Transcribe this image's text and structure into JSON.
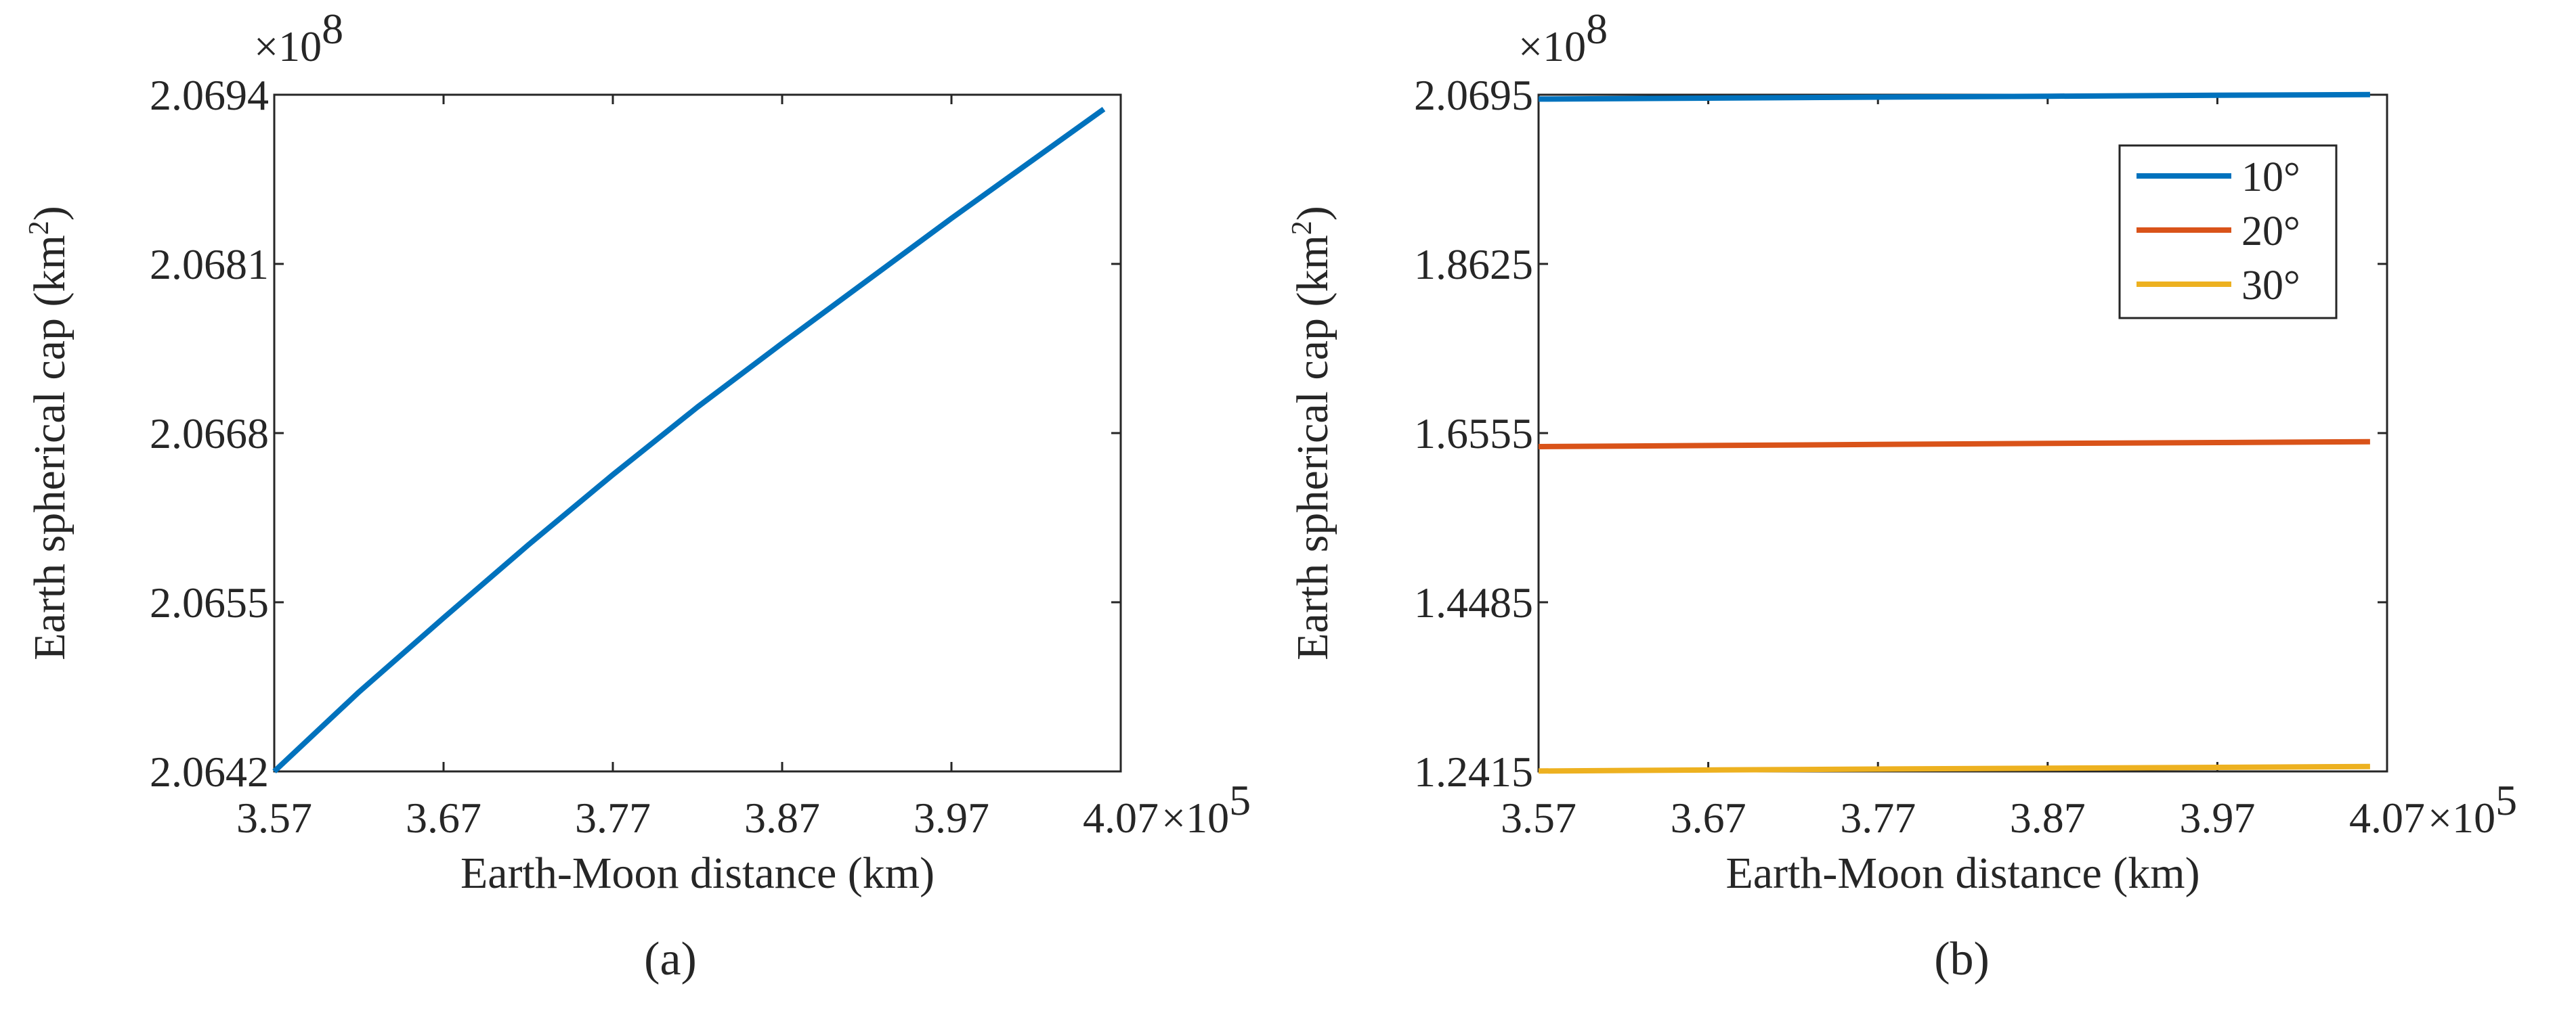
{
  "chart_data": [
    {
      "type": "line",
      "caption": "(a)",
      "xlabel": "Earth-Moon distance (km)",
      "ylabel_main": "Earth spherical cap (km",
      "ylabel_sup": "2",
      "ylabel_end": ")",
      "x_multiplier_base": "×10",
      "x_multiplier_exp": "5",
      "y_multiplier_base": "×10",
      "y_multiplier_exp": "8",
      "xlim": [
        3.57,
        4.07
      ],
      "ylim": [
        2.0642,
        2.0694
      ],
      "xticks": [
        3.57,
        3.67,
        3.77,
        3.87,
        3.97,
        4.07
      ],
      "xtick_labels": [
        "3.57",
        "3.67",
        "3.77",
        "3.87",
        "3.97",
        "4.07"
      ],
      "yticks": [
        2.0642,
        2.0655,
        2.0668,
        2.0681,
        2.0694
      ],
      "ytick_labels": [
        "2.0642",
        "2.0655",
        "2.0668",
        "2.0681",
        "2.0694"
      ],
      "legend": false,
      "series": [
        {
          "name": "Earth spherical cap",
          "color": "#0072BD",
          "x": [
            3.57,
            3.62,
            3.67,
            3.72,
            3.77,
            3.82,
            3.87,
            3.92,
            3.97,
            4.06
          ],
          "y": [
            2.0642,
            2.06481,
            2.06538,
            2.06594,
            2.06648,
            2.067,
            2.06749,
            2.06797,
            2.06845,
            2.06929
          ]
        }
      ]
    },
    {
      "type": "line",
      "caption": "(b)",
      "xlabel": "Earth-Moon distance (km)",
      "ylabel_main": "Earth spherical cap (km",
      "ylabel_sup": "2",
      "ylabel_end": ")",
      "x_multiplier_base": "×10",
      "x_multiplier_exp": "5",
      "y_multiplier_base": "×10",
      "y_multiplier_exp": "8",
      "xlim": [
        3.57,
        4.07
      ],
      "ylim": [
        1.2415,
        2.0695
      ],
      "xticks": [
        3.57,
        3.67,
        3.77,
        3.87,
        3.97,
        4.07
      ],
      "xtick_labels": [
        "3.57",
        "3.67",
        "3.77",
        "3.87",
        "3.97",
        "4.07"
      ],
      "yticks": [
        1.2415,
        1.4485,
        1.6555,
        1.8625,
        2.0695
      ],
      "ytick_labels": [
        "1.2415",
        "1.4485",
        "1.6555",
        "1.8625",
        "2.0695"
      ],
      "legend": true,
      "legend_location": "top-right",
      "series": [
        {
          "name": "10°",
          "color": "#0072BD",
          "x": [
            3.57,
            3.67,
            3.77,
            3.87,
            3.97,
            4.06
          ],
          "y": [
            2.0642,
            2.0654,
            2.0666,
            2.0677,
            2.0688,
            2.0697
          ]
        },
        {
          "name": "20°",
          "color": "#D95319",
          "x": [
            3.57,
            3.67,
            3.77,
            3.87,
            3.97,
            4.06
          ],
          "y": [
            1.6389,
            1.6403,
            1.6416,
            1.6428,
            1.6439,
            1.645
          ]
        },
        {
          "name": "30°",
          "color": "#EDB120",
          "x": [
            3.57,
            3.67,
            3.77,
            3.87,
            3.97,
            4.06
          ],
          "y": [
            1.242,
            1.2432,
            1.2444,
            1.2455,
            1.2465,
            1.2475
          ]
        }
      ]
    }
  ]
}
